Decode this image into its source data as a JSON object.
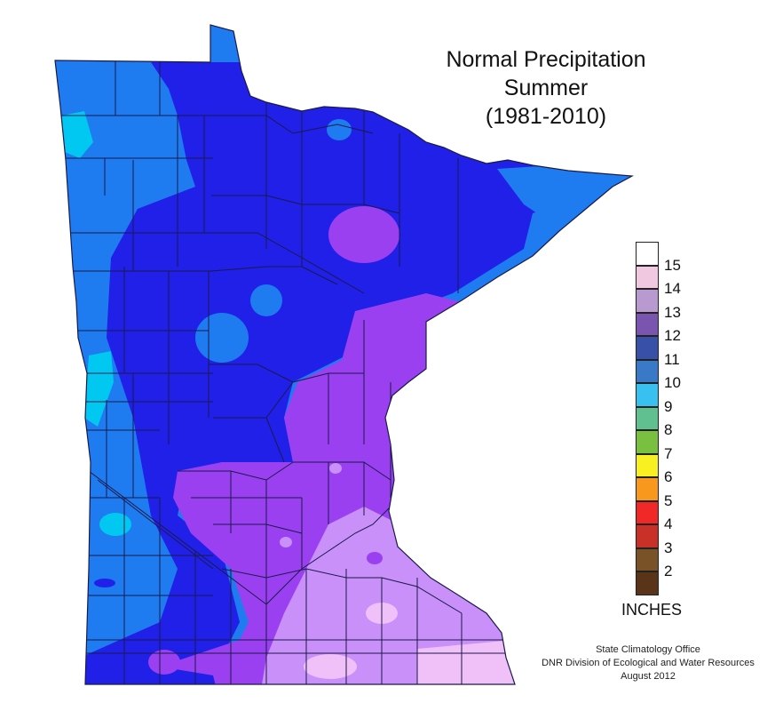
{
  "title": {
    "line1": "Normal Precipitation",
    "line2": "Summer",
    "line3": "(1981-2010)"
  },
  "legend": {
    "units": "INCHES",
    "ticks": [
      "15",
      "14",
      "13",
      "12",
      "11",
      "10",
      "9",
      "8",
      "7",
      "6",
      "5",
      "4",
      "3",
      "2"
    ],
    "colors": [
      "#ffffff",
      "#f0c8e0",
      "#b89ad0",
      "#7a55b0",
      "#3850a8",
      "#3a78c8",
      "#38c0f0",
      "#60c090",
      "#7ac040",
      "#f8f020",
      "#f8981c",
      "#f02828",
      "#c83028",
      "#7a5228",
      "#5a3418"
    ]
  },
  "map_colors": {
    "outside": "#ffffff",
    "blue_9_10": "#1e7cf0",
    "light_blue_10": "#00c8f0",
    "deep_blue_11": "#2020e8",
    "purple_12": "#9a40f0",
    "light_purple_13": "#c890f8",
    "pale_pink_14": "#f0c0f8",
    "county_lines": "#1a1a4a"
  },
  "credits": {
    "line1": "State Climatology Office",
    "line2": "DNR Division of Ecological and Water Resources",
    "line3": "August 2012"
  }
}
